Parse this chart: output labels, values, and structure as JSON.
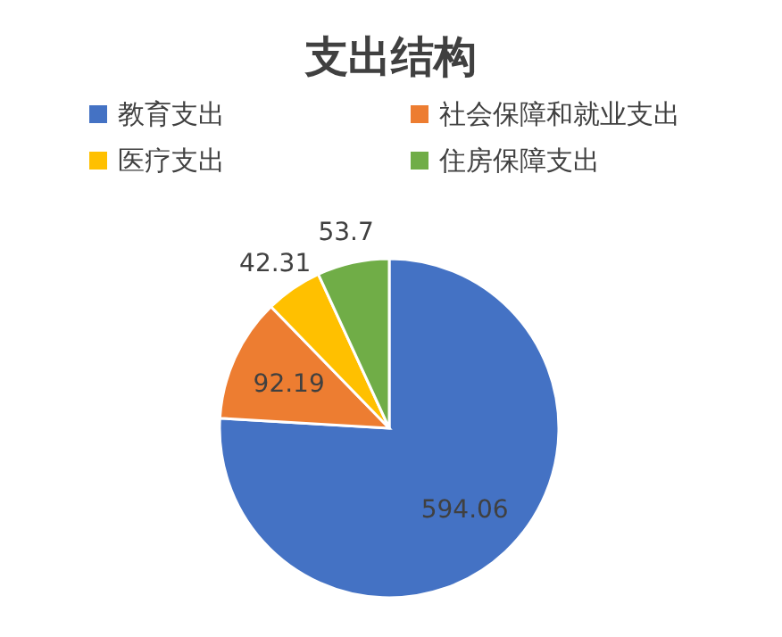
{
  "chart_data": {
    "type": "pie",
    "title": "支出结构",
    "categories": [
      "教育支出",
      "社会保障和就业支出",
      "医疗支出",
      "住房保障支出"
    ],
    "values": [
      594.06,
      92.19,
      42.31,
      53.7
    ],
    "colors": [
      "#4472c4",
      "#ed7d31",
      "#ffc000",
      "#70ad47"
    ],
    "data_labels": true,
    "legend": "top"
  }
}
